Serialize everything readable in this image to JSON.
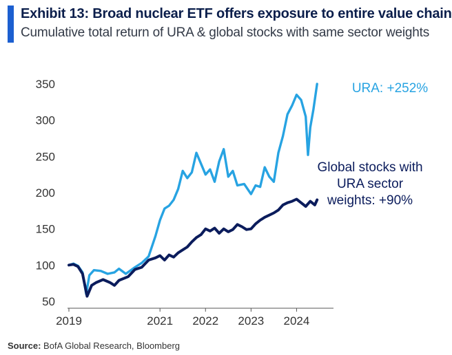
{
  "header": {
    "title": "Exhibit 13: Broad nuclear ETF offers exposure to entire value chain",
    "subtitle": "Cumulative total return of URA & global stocks with same sector weights"
  },
  "footer": {
    "source_label": "Source:",
    "source_text": "BofA Global Research, Bloomberg"
  },
  "colors": {
    "ura": "#27a3e2",
    "global": "#0b1c5c",
    "accent": "#1c5fd0",
    "axis": "#555555"
  },
  "chart_data": {
    "type": "line",
    "title": "Exhibit 13: Broad nuclear ETF offers exposure to entire value chain",
    "subtitle": "Cumulative total return of URA & global stocks with same sector weights",
    "xlabel": "",
    "ylabel": "",
    "xlim": [
      2019.0,
      2024.75
    ],
    "ylim": [
      50,
      350
    ],
    "x_ticks": [
      2019,
      2021,
      2022,
      2023,
      2024
    ],
    "x_tick_labels": [
      "2019",
      "2021",
      "2022",
      "2023",
      "2024"
    ],
    "y_ticks": [
      50,
      100,
      150,
      200,
      250,
      300,
      350
    ],
    "y_tick_labels": [
      "50",
      "100",
      "150",
      "200",
      "250",
      "300",
      "350"
    ],
    "grid": false,
    "annotations": [
      {
        "series": "ura",
        "lines": [
          "URA: +252%"
        ]
      },
      {
        "series": "global",
        "lines": [
          "Global stocks with",
          "URA sector",
          "weights: +90%"
        ]
      }
    ],
    "series": [
      {
        "key": "ura",
        "name": "URA",
        "color": "#27a3e2",
        "points": [
          [
            2019.0,
            100
          ],
          [
            2019.1,
            102
          ],
          [
            2019.2,
            99
          ],
          [
            2019.3,
            90
          ],
          [
            2019.38,
            60
          ],
          [
            2019.45,
            86
          ],
          [
            2019.55,
            93
          ],
          [
            2019.7,
            92
          ],
          [
            2019.85,
            88
          ],
          [
            2020.0,
            90
          ],
          [
            2020.1,
            95
          ],
          [
            2020.25,
            88
          ],
          [
            2020.45,
            97
          ],
          [
            2020.6,
            103
          ],
          [
            2020.75,
            112
          ],
          [
            2020.9,
            140
          ],
          [
            2021.0,
            162
          ],
          [
            2021.1,
            178
          ],
          [
            2021.2,
            182
          ],
          [
            2021.3,
            190
          ],
          [
            2021.4,
            205
          ],
          [
            2021.5,
            230
          ],
          [
            2021.6,
            220
          ],
          [
            2021.7,
            228
          ],
          [
            2021.8,
            255
          ],
          [
            2021.9,
            240
          ],
          [
            2022.0,
            225
          ],
          [
            2022.1,
            232
          ],
          [
            2022.2,
            215
          ],
          [
            2022.3,
            243
          ],
          [
            2022.4,
            260
          ],
          [
            2022.5,
            222
          ],
          [
            2022.6,
            230
          ],
          [
            2022.7,
            210
          ],
          [
            2022.85,
            212
          ],
          [
            2023.0,
            198
          ],
          [
            2023.1,
            210
          ],
          [
            2023.2,
            208
          ],
          [
            2023.3,
            235
          ],
          [
            2023.4,
            222
          ],
          [
            2023.5,
            215
          ],
          [
            2023.6,
            255
          ],
          [
            2023.7,
            278
          ],
          [
            2023.8,
            308
          ],
          [
            2023.9,
            320
          ],
          [
            2024.0,
            335
          ],
          [
            2024.1,
            328
          ],
          [
            2024.2,
            305
          ],
          [
            2024.25,
            252
          ],
          [
            2024.3,
            290
          ],
          [
            2024.37,
            315
          ],
          [
            2024.45,
            350
          ]
        ]
      },
      {
        "key": "global",
        "name": "Global stocks with URA sector weights",
        "color": "#0b1c5c",
        "points": [
          [
            2019.0,
            100
          ],
          [
            2019.1,
            101
          ],
          [
            2019.2,
            98
          ],
          [
            2019.3,
            88
          ],
          [
            2019.4,
            57
          ],
          [
            2019.5,
            72
          ],
          [
            2019.6,
            76
          ],
          [
            2019.75,
            80
          ],
          [
            2019.9,
            76
          ],
          [
            2020.0,
            72
          ],
          [
            2020.1,
            79
          ],
          [
            2020.3,
            84
          ],
          [
            2020.45,
            94
          ],
          [
            2020.6,
            97
          ],
          [
            2020.75,
            107
          ],
          [
            2020.9,
            110
          ],
          [
            2021.0,
            113
          ],
          [
            2021.1,
            107
          ],
          [
            2021.2,
            114
          ],
          [
            2021.3,
            111
          ],
          [
            2021.4,
            117
          ],
          [
            2021.5,
            121
          ],
          [
            2021.6,
            125
          ],
          [
            2021.7,
            132
          ],
          [
            2021.8,
            138
          ],
          [
            2021.9,
            142
          ],
          [
            2022.0,
            150
          ],
          [
            2022.1,
            147
          ],
          [
            2022.2,
            151
          ],
          [
            2022.3,
            144
          ],
          [
            2022.4,
            150
          ],
          [
            2022.5,
            146
          ],
          [
            2022.6,
            149
          ],
          [
            2022.7,
            156
          ],
          [
            2022.8,
            153
          ],
          [
            2022.9,
            149
          ],
          [
            2023.0,
            150
          ],
          [
            2023.1,
            157
          ],
          [
            2023.2,
            162
          ],
          [
            2023.3,
            166
          ],
          [
            2023.4,
            169
          ],
          [
            2023.5,
            172
          ],
          [
            2023.6,
            176
          ],
          [
            2023.7,
            183
          ],
          [
            2023.8,
            186
          ],
          [
            2023.9,
            188
          ],
          [
            2024.0,
            191
          ],
          [
            2024.1,
            186
          ],
          [
            2024.2,
            181
          ],
          [
            2024.3,
            188
          ],
          [
            2024.4,
            183
          ],
          [
            2024.45,
            190
          ]
        ]
      }
    ]
  }
}
